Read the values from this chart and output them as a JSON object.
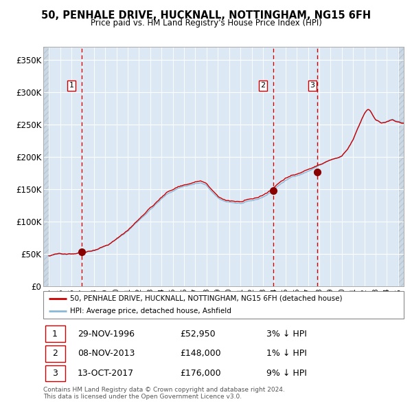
{
  "title": "50, PENHALE DRIVE, HUCKNALL, NOTTINGHAM, NG15 6FH",
  "subtitle": "Price paid vs. HM Land Registry's House Price Index (HPI)",
  "sale_prices": [
    52950,
    148000,
    176000
  ],
  "sale_labels": [
    "1",
    "2",
    "3"
  ],
  "sale_date_strs": [
    "29-NOV-1996",
    "08-NOV-2013",
    "13-OCT-2017"
  ],
  "sale_price_strs": [
    "£52,950",
    "£148,000",
    "£176,000"
  ],
  "sale_hpi_strs": [
    "3% ↓ HPI",
    "1% ↓ HPI",
    "9% ↓ HPI"
  ],
  "legend_line1": "50, PENHALE DRIVE, HUCKNALL, NOTTINGHAM, NG15 6FH (detached house)",
  "legend_line2": "HPI: Average price, detached house, Ashfield",
  "footer": "Contains HM Land Registry data © Crown copyright and database right 2024.\nThis data is licensed under the Open Government Licence v3.0.",
  "hpi_color": "#8ab8d8",
  "price_color": "#cc0000",
  "marker_color": "#880000",
  "dashed_line_color": "#cc0000",
  "background_color": "#dce9f5",
  "grid_color": "#ffffff",
  "ylim": [
    0,
    370000
  ],
  "yticks": [
    0,
    50000,
    100000,
    150000,
    200000,
    250000,
    300000,
    350000
  ],
  "ytick_labels": [
    "£0",
    "£50K",
    "£100K",
    "£150K",
    "£200K",
    "£250K",
    "£300K",
    "£350K"
  ],
  "xlim_start": 1993.5,
  "xlim_end": 2025.5,
  "sale_decimal": [
    1996.9167,
    2013.9167,
    2017.7917
  ],
  "hpi_keypoints_x": [
    1994.0,
    1995.0,
    1996.0,
    1997.0,
    1998.0,
    1999.0,
    2000.0,
    2001.0,
    2002.0,
    2003.0,
    2004.0,
    2004.5,
    2005.0,
    2005.5,
    2006.0,
    2007.0,
    2007.5,
    2008.0,
    2008.5,
    2009.0,
    2009.5,
    2010.0,
    2011.0,
    2012.0,
    2012.5,
    2013.0,
    2013.5,
    2014.0,
    2014.5,
    2015.0,
    2015.5,
    2016.0,
    2016.5,
    2017.0,
    2017.5,
    2018.0,
    2018.5,
    2019.0,
    2019.5,
    2020.0,
    2020.5,
    2021.0,
    2021.5,
    2022.0,
    2022.3,
    2022.5,
    2022.8,
    2023.0,
    2023.5,
    2024.0,
    2024.5,
    2025.0,
    2025.4
  ],
  "hpi_keypoints_y": [
    47000,
    49000,
    51000,
    54000,
    58000,
    65000,
    75000,
    88000,
    105000,
    122000,
    138000,
    145000,
    150000,
    155000,
    158000,
    162000,
    163000,
    158000,
    148000,
    138000,
    133000,
    132000,
    130000,
    132000,
    134000,
    138000,
    143000,
    150000,
    158000,
    163000,
    168000,
    172000,
    175000,
    179000,
    183000,
    188000,
    192000,
    196000,
    198000,
    200000,
    210000,
    225000,
    245000,
    265000,
    272000,
    270000,
    262000,
    257000,
    252000,
    254000,
    257000,
    253000,
    250000
  ]
}
